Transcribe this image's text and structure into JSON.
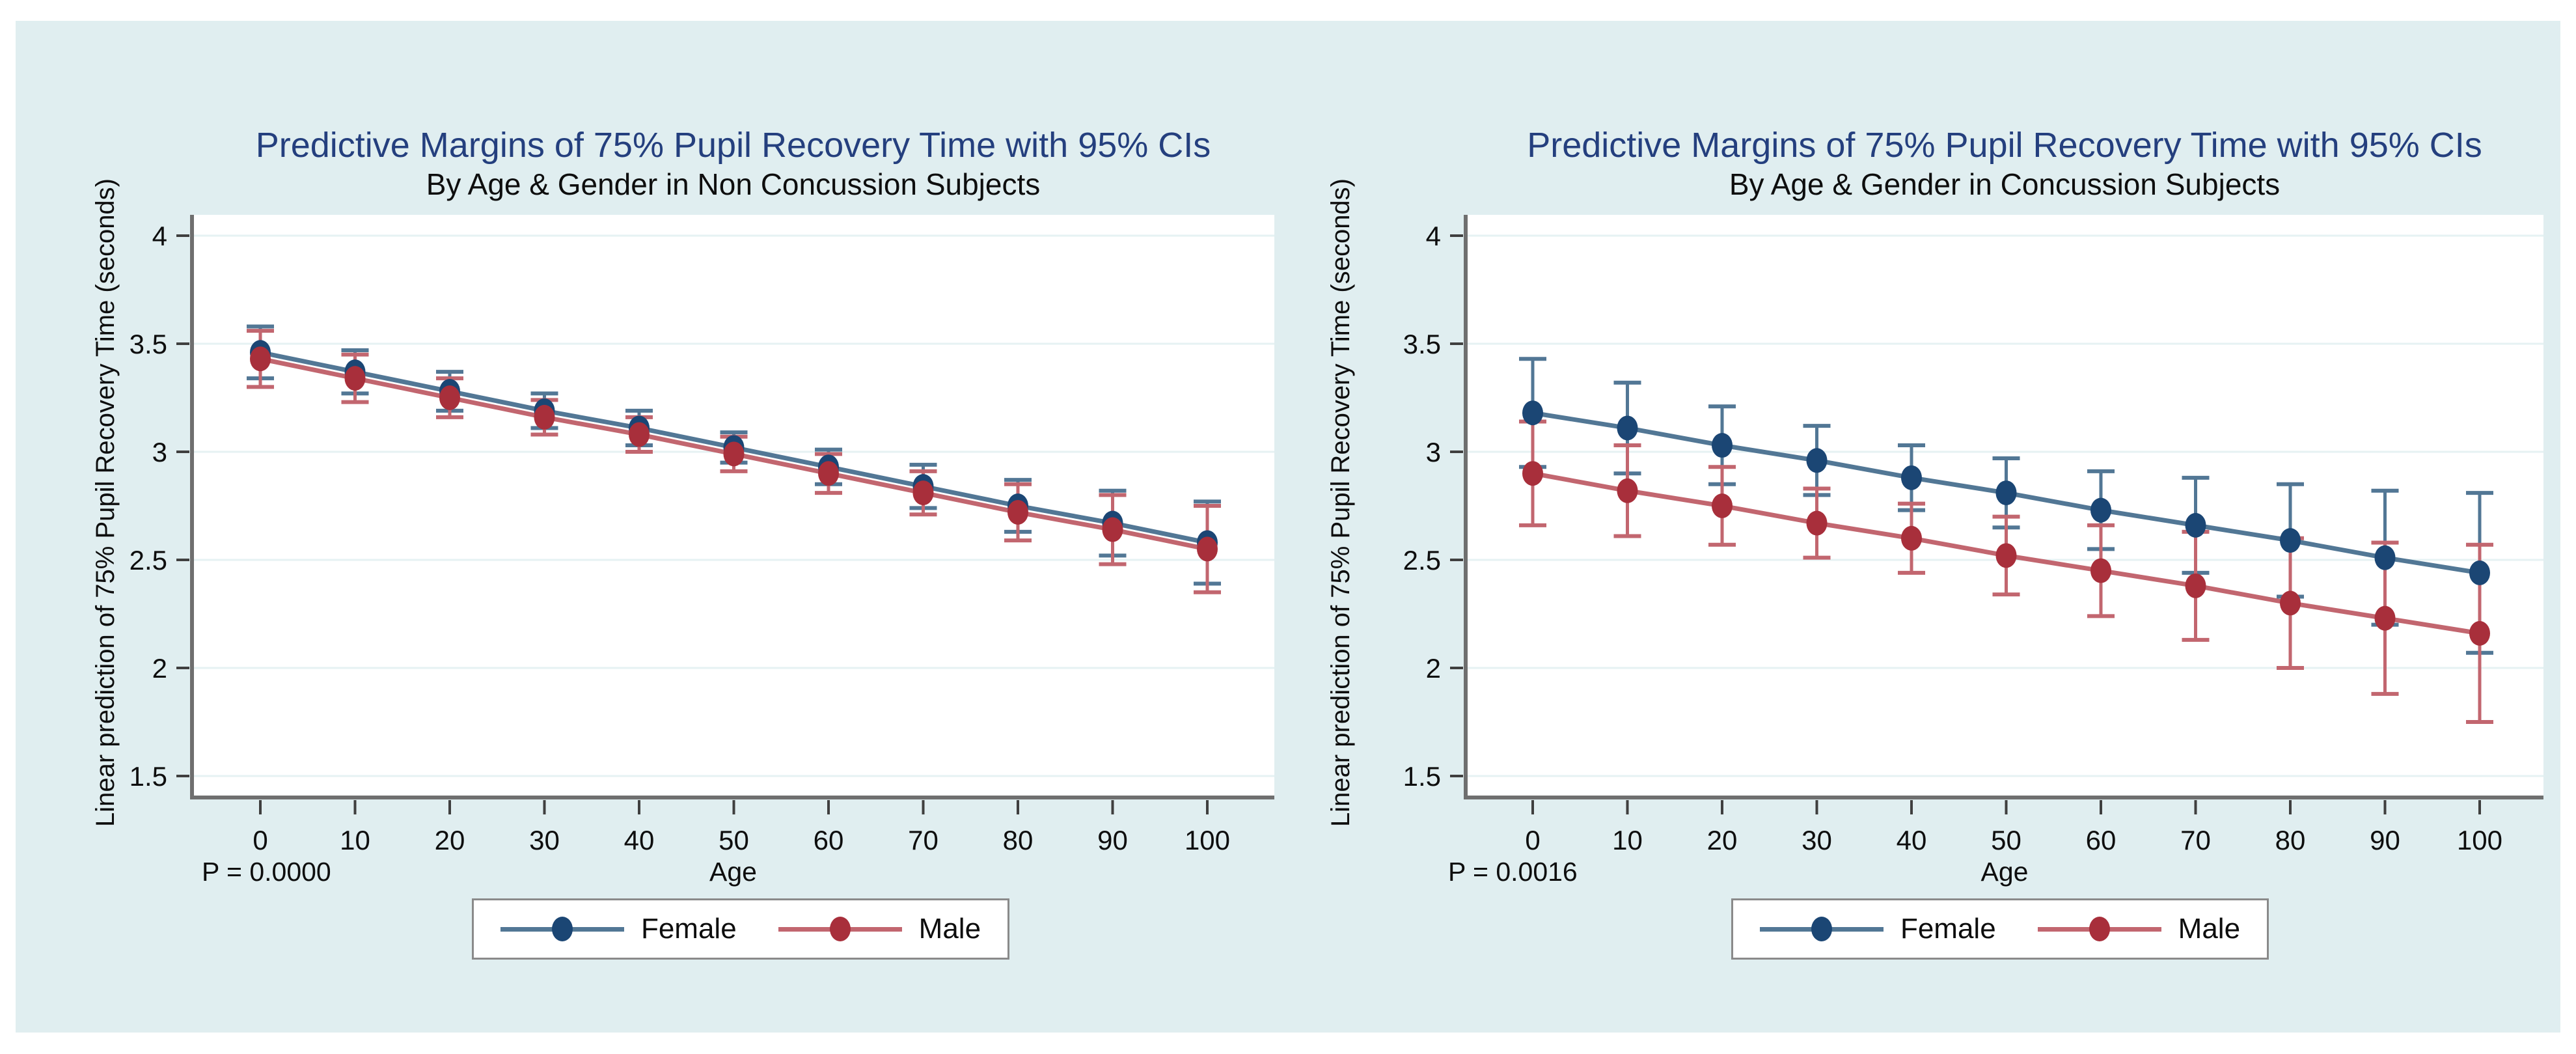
{
  "figure": {
    "page_background": "#ffffff",
    "panel_background": "#e0eef0"
  },
  "colors": {
    "title": "#243f7e",
    "text": "#0e0e0e",
    "axis": "#6f6f6f",
    "tick": "#3f3f3f",
    "grid": "#e6f2f3",
    "plot_background": "#ffffff",
    "female_line": "#527795",
    "female_marker": "#1b4674",
    "male_line": "#c2666f",
    "male_marker": "#a82f3b",
    "legend_border": "#8a8a8a"
  },
  "chart_data": [
    {
      "type": "line",
      "title": "Predictive Margins of 75% Pupil Recovery Time with 95% CIs",
      "subtitle": "By Age & Gender in Non Concussion Subjects",
      "xlabel": "Age",
      "ylabel": "Linear prediction of 75% Pupil Recovery Time (seconds)",
      "p_label": "P = 0.0000",
      "error_bars": "95% CI",
      "grid": true,
      "legend_position": "bottom-center",
      "x": [
        0,
        10,
        20,
        30,
        40,
        50,
        60,
        70,
        80,
        90,
        100
      ],
      "xticks": [
        0,
        10,
        20,
        30,
        40,
        50,
        60,
        70,
        80,
        90,
        100
      ],
      "yticks": [
        1.5,
        2,
        2.5,
        3,
        3.5,
        4
      ],
      "xlim": [
        -7,
        107
      ],
      "ylim": [
        1.3,
        4.1
      ],
      "series": [
        {
          "name": "Female",
          "values": [
            3.46,
            3.37,
            3.28,
            3.19,
            3.11,
            3.02,
            2.93,
            2.84,
            2.75,
            2.67,
            2.58
          ],
          "ci_low": [
            3.34,
            3.27,
            3.19,
            3.11,
            3.03,
            2.95,
            2.85,
            2.74,
            2.63,
            2.52,
            2.39
          ],
          "ci_high": [
            3.58,
            3.47,
            3.37,
            3.27,
            3.19,
            3.09,
            3.01,
            2.94,
            2.87,
            2.82,
            2.77
          ]
        },
        {
          "name": "Male",
          "values": [
            3.43,
            3.34,
            3.25,
            3.16,
            3.08,
            2.99,
            2.9,
            2.81,
            2.72,
            2.64,
            2.55
          ],
          "ci_low": [
            3.3,
            3.23,
            3.16,
            3.08,
            3.0,
            2.91,
            2.81,
            2.71,
            2.59,
            2.48,
            2.35
          ],
          "ci_high": [
            3.56,
            3.45,
            3.34,
            3.24,
            3.16,
            3.07,
            2.99,
            2.91,
            2.85,
            2.8,
            2.75
          ]
        }
      ]
    },
    {
      "type": "line",
      "title": "Predictive Margins of 75% Pupil Recovery Time with 95% CIs",
      "subtitle": "By Age & Gender in Concussion Subjects",
      "xlabel": "Age",
      "ylabel": "Linear prediction of 75% Pupil Recovery Time (seconds)",
      "p_label": "P = 0.0016",
      "error_bars": "95% CI",
      "grid": true,
      "legend_position": "bottom-center",
      "x": [
        0,
        10,
        20,
        30,
        40,
        50,
        60,
        70,
        80,
        90,
        100
      ],
      "xticks": [
        0,
        10,
        20,
        30,
        40,
        50,
        60,
        70,
        80,
        90,
        100
      ],
      "yticks": [
        1.5,
        2,
        2.5,
        3,
        3.5,
        4
      ],
      "xlim": [
        -7,
        107
      ],
      "ylim": [
        1.3,
        4.1
      ],
      "series": [
        {
          "name": "Female",
          "values": [
            3.18,
            3.11,
            3.03,
            2.96,
            2.88,
            2.81,
            2.73,
            2.66,
            2.59,
            2.51,
            2.44
          ],
          "ci_low": [
            2.93,
            2.9,
            2.85,
            2.8,
            2.73,
            2.65,
            2.55,
            2.44,
            2.33,
            2.2,
            2.07
          ],
          "ci_high": [
            3.43,
            3.32,
            3.21,
            3.12,
            3.03,
            2.97,
            2.91,
            2.88,
            2.85,
            2.82,
            2.81
          ]
        },
        {
          "name": "Male",
          "values": [
            2.9,
            2.82,
            2.75,
            2.67,
            2.6,
            2.52,
            2.45,
            2.38,
            2.3,
            2.23,
            2.16
          ],
          "ci_low": [
            2.66,
            2.61,
            2.57,
            2.51,
            2.44,
            2.34,
            2.24,
            2.13,
            2.0,
            1.88,
            1.75
          ],
          "ci_high": [
            3.14,
            3.03,
            2.93,
            2.83,
            2.76,
            2.7,
            2.66,
            2.63,
            2.6,
            2.58,
            2.57
          ]
        }
      ]
    }
  ]
}
